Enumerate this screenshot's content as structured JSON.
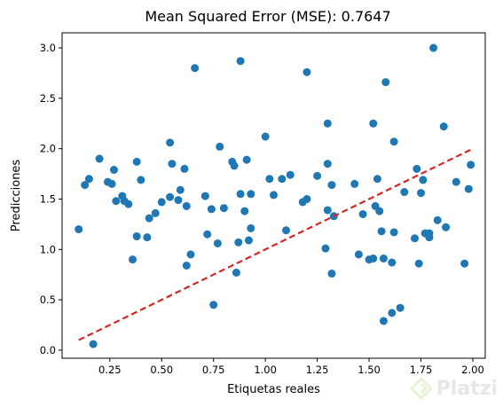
{
  "chart_data": {
    "type": "scatter",
    "title": "Mean Squared Error (MSE): 0.7647",
    "xlabel": "Etiquetas reales",
    "ylabel": "Predicciones",
    "xlim": [
      0.02,
      2.06
    ],
    "ylim": [
      -0.08,
      3.15
    ],
    "xticks": [
      0.25,
      0.5,
      0.75,
      1.0,
      1.25,
      1.5,
      1.75,
      2.0
    ],
    "xtick_labels": [
      "0.25",
      "0.50",
      "0.75",
      "1.00",
      "1.25",
      "1.50",
      "1.75",
      "2.00"
    ],
    "yticks": [
      0.0,
      0.5,
      1.0,
      1.5,
      2.0,
      2.5,
      3.0
    ],
    "ytick_labels": [
      "0.0",
      "0.5",
      "1.0",
      "1.5",
      "2.0",
      "2.5",
      "3.0"
    ],
    "grid": false,
    "point_color": "#1f77b4",
    "reference_line": {
      "x": [
        0.1,
        1.99
      ],
      "y": [
        0.1,
        1.99
      ],
      "color": "#d62728",
      "style": "dashed"
    },
    "points": [
      {
        "x": 0.1,
        "y": 1.2
      },
      {
        "x": 0.13,
        "y": 1.64
      },
      {
        "x": 0.15,
        "y": 1.7
      },
      {
        "x": 0.17,
        "y": 0.06
      },
      {
        "x": 0.2,
        "y": 1.9
      },
      {
        "x": 0.24,
        "y": 1.67
      },
      {
        "x": 0.26,
        "y": 1.65
      },
      {
        "x": 0.27,
        "y": 1.79
      },
      {
        "x": 0.28,
        "y": 1.48
      },
      {
        "x": 0.31,
        "y": 1.53
      },
      {
        "x": 0.32,
        "y": 1.48
      },
      {
        "x": 0.34,
        "y": 1.45
      },
      {
        "x": 0.36,
        "y": 0.9
      },
      {
        "x": 0.38,
        "y": 1.13
      },
      {
        "x": 0.38,
        "y": 1.87
      },
      {
        "x": 0.4,
        "y": 1.69
      },
      {
        "x": 0.43,
        "y": 1.12
      },
      {
        "x": 0.44,
        "y": 1.31
      },
      {
        "x": 0.47,
        "y": 1.36
      },
      {
        "x": 0.5,
        "y": 1.47
      },
      {
        "x": 0.54,
        "y": 1.52
      },
      {
        "x": 0.54,
        "y": 2.06
      },
      {
        "x": 0.55,
        "y": 1.85
      },
      {
        "x": 0.58,
        "y": 1.49
      },
      {
        "x": 0.59,
        "y": 1.59
      },
      {
        "x": 0.61,
        "y": 1.8
      },
      {
        "x": 0.62,
        "y": 1.43
      },
      {
        "x": 0.62,
        "y": 0.84
      },
      {
        "x": 0.64,
        "y": 0.95
      },
      {
        "x": 0.66,
        "y": 2.8
      },
      {
        "x": 0.71,
        "y": 1.53
      },
      {
        "x": 0.72,
        "y": 1.15
      },
      {
        "x": 0.74,
        "y": 1.4
      },
      {
        "x": 0.75,
        "y": 0.45
      },
      {
        "x": 0.77,
        "y": 1.06
      },
      {
        "x": 0.78,
        "y": 2.02
      },
      {
        "x": 0.8,
        "y": 1.41
      },
      {
        "x": 0.84,
        "y": 1.87
      },
      {
        "x": 0.85,
        "y": 1.83
      },
      {
        "x": 0.86,
        "y": 0.77
      },
      {
        "x": 0.87,
        "y": 1.07
      },
      {
        "x": 0.88,
        "y": 1.55
      },
      {
        "x": 0.88,
        "y": 2.87
      },
      {
        "x": 0.9,
        "y": 1.38
      },
      {
        "x": 0.91,
        "y": 1.89
      },
      {
        "x": 0.92,
        "y": 1.09
      },
      {
        "x": 0.93,
        "y": 1.55
      },
      {
        "x": 0.93,
        "y": 1.21
      },
      {
        "x": 1.0,
        "y": 2.12
      },
      {
        "x": 1.02,
        "y": 1.7
      },
      {
        "x": 1.04,
        "y": 1.54
      },
      {
        "x": 1.08,
        "y": 1.7
      },
      {
        "x": 1.1,
        "y": 1.19
      },
      {
        "x": 1.12,
        "y": 1.74
      },
      {
        "x": 1.18,
        "y": 1.47
      },
      {
        "x": 1.2,
        "y": 1.5
      },
      {
        "x": 1.2,
        "y": 2.76
      },
      {
        "x": 1.25,
        "y": 1.73
      },
      {
        "x": 1.29,
        "y": 1.01
      },
      {
        "x": 1.3,
        "y": 1.39
      },
      {
        "x": 1.3,
        "y": 1.85
      },
      {
        "x": 1.3,
        "y": 2.25
      },
      {
        "x": 1.32,
        "y": 1.64
      },
      {
        "x": 1.32,
        "y": 0.76
      },
      {
        "x": 1.33,
        "y": 1.33
      },
      {
        "x": 1.43,
        "y": 1.65
      },
      {
        "x": 1.45,
        "y": 0.95
      },
      {
        "x": 1.47,
        "y": 1.35
      },
      {
        "x": 1.5,
        "y": 0.9
      },
      {
        "x": 1.52,
        "y": 0.91
      },
      {
        "x": 1.52,
        "y": 2.25
      },
      {
        "x": 1.53,
        "y": 1.43
      },
      {
        "x": 1.54,
        "y": 1.7
      },
      {
        "x": 1.55,
        "y": 1.38
      },
      {
        "x": 1.56,
        "y": 1.18
      },
      {
        "x": 1.57,
        "y": 0.91
      },
      {
        "x": 1.57,
        "y": 0.29
      },
      {
        "x": 1.58,
        "y": 2.66
      },
      {
        "x": 1.61,
        "y": 0.37
      },
      {
        "x": 1.61,
        "y": 0.87
      },
      {
        "x": 1.62,
        "y": 1.17
      },
      {
        "x": 1.62,
        "y": 2.07
      },
      {
        "x": 1.65,
        "y": 0.42
      },
      {
        "x": 1.67,
        "y": 1.57
      },
      {
        "x": 1.72,
        "y": 1.11
      },
      {
        "x": 1.73,
        "y": 1.8
      },
      {
        "x": 1.74,
        "y": 0.86
      },
      {
        "x": 1.75,
        "y": 1.56
      },
      {
        "x": 1.76,
        "y": 1.69
      },
      {
        "x": 1.77,
        "y": 1.16
      },
      {
        "x": 1.79,
        "y": 1.16
      },
      {
        "x": 1.79,
        "y": 1.12
      },
      {
        "x": 1.81,
        "y": 3.0
      },
      {
        "x": 1.83,
        "y": 1.29
      },
      {
        "x": 1.86,
        "y": 2.22
      },
      {
        "x": 1.87,
        "y": 1.22
      },
      {
        "x": 1.92,
        "y": 1.67
      },
      {
        "x": 1.96,
        "y": 0.86
      },
      {
        "x": 1.98,
        "y": 1.6
      },
      {
        "x": 1.99,
        "y": 1.84
      }
    ]
  },
  "watermark": {
    "text": "Platzi",
    "color": "#98ca3f"
  }
}
